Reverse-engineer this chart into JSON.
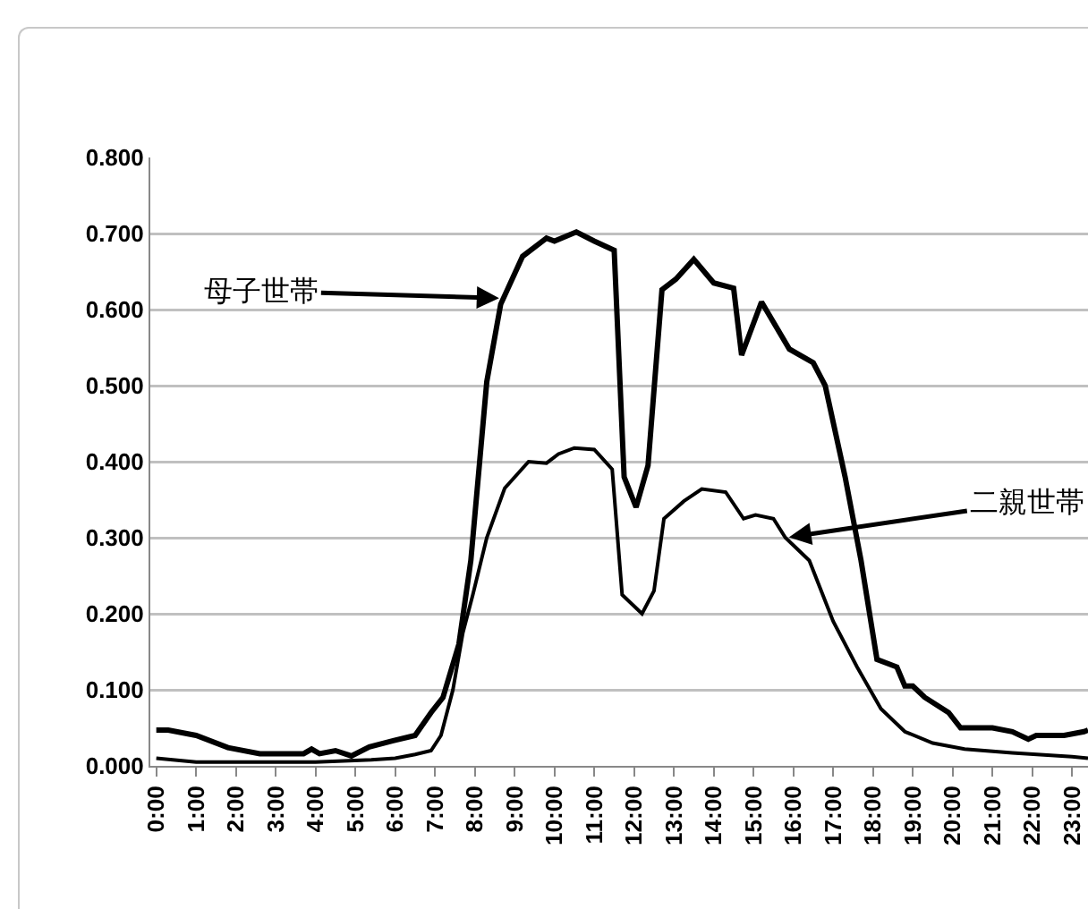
{
  "chart_data": {
    "type": "line",
    "x": [
      0,
      0.3,
      1.0,
      1.8,
      2.6,
      3.7,
      3.9,
      4.1,
      4.5,
      4.9,
      5.35,
      5.95,
      6.5,
      6.9,
      7.2,
      7.6,
      7.9,
      8.3,
      8.65,
      9.2,
      9.55,
      9.8,
      10.0,
      10.55,
      11.0,
      11.5,
      11.75,
      12.05,
      12.35,
      12.7,
      13.05,
      13.5,
      14.0,
      14.5,
      14.7,
      15.2,
      15.9,
      16.5,
      16.8,
      17.3,
      17.7,
      18.1,
      18.6,
      18.8,
      19.0,
      19.3,
      19.9,
      20.2,
      21.0,
      21.5,
      21.9,
      22.1,
      22.8,
      23.3,
      23.4
    ],
    "series": [
      {
        "color": "#000000",
        "values": [
          0.047,
          0.047,
          0.04,
          0.024,
          0.016,
          0.016,
          0.022,
          0.016,
          0.02,
          0.013,
          0.025,
          0.033,
          0.04,
          0.07,
          0.09,
          0.16,
          0.27,
          0.505,
          0.607,
          0.67,
          0.684,
          0.694,
          0.69,
          0.702,
          0.69,
          0.678,
          0.38,
          0.34,
          0.395,
          0.626,
          0.64,
          0.666,
          0.635,
          0.628,
          0.54,
          0.61,
          0.548,
          0.53,
          0.5,
          0.38,
          0.27,
          0.14,
          0.13,
          0.105,
          0.105,
          0.09,
          0.07,
          0.05,
          0.05,
          0.045,
          0.035,
          0.04,
          0.04,
          0.045,
          0.047
        ]
      },
      {
        "color": "#000000",
        "x": [
          0,
          1.0,
          2.0,
          3.0,
          4.0,
          5.4,
          6.0,
          6.5,
          6.9,
          7.15,
          7.45,
          7.7,
          7.95,
          8.3,
          8.75,
          9.35,
          9.8,
          10.1,
          10.5,
          11.0,
          11.45,
          11.7,
          12.2,
          12.5,
          12.75,
          13.25,
          13.7,
          14.3,
          14.75,
          15.05,
          15.5,
          15.8,
          16.4,
          17.0,
          17.6,
          18.2,
          18.8,
          19.5,
          20.3,
          21.5,
          23.0,
          23.4
        ],
        "values": [
          0.01,
          0.005,
          0.005,
          0.005,
          0.005,
          0.008,
          0.01,
          0.015,
          0.02,
          0.04,
          0.1,
          0.175,
          0.225,
          0.3,
          0.365,
          0.4,
          0.398,
          0.41,
          0.418,
          0.416,
          0.39,
          0.225,
          0.2,
          0.23,
          0.325,
          0.348,
          0.364,
          0.36,
          0.325,
          0.33,
          0.325,
          0.3,
          0.27,
          0.19,
          0.13,
          0.075,
          0.045,
          0.03,
          0.022,
          0.017,
          0.012,
          0.01
        ]
      }
    ],
    "xlim": [
      -0.15,
      23.4
    ],
    "xticks": [
      {
        "value": 0,
        "label": "0:00"
      },
      {
        "value": 1,
        "label": "1:00"
      },
      {
        "value": 2,
        "label": "2:00"
      },
      {
        "value": 3,
        "label": "3:00"
      },
      {
        "value": 4,
        "label": "4:00"
      },
      {
        "value": 5,
        "label": "5:00"
      },
      {
        "value": 6,
        "label": "6:00"
      },
      {
        "value": 7,
        "label": "7:00"
      },
      {
        "value": 8,
        "label": "8:00"
      },
      {
        "value": 9,
        "label": "9:00"
      },
      {
        "value": 10,
        "label": "10:00"
      },
      {
        "value": 11,
        "label": "11:00"
      },
      {
        "value": 12,
        "label": "12:00"
      },
      {
        "value": 13,
        "label": "13:00"
      },
      {
        "value": 14,
        "label": "14:00"
      },
      {
        "value": 15,
        "label": "15:00"
      },
      {
        "value": 16,
        "label": "16:00"
      },
      {
        "value": 17,
        "label": "17:00"
      },
      {
        "value": 18,
        "label": "18:00"
      },
      {
        "value": 19,
        "label": "19:00"
      },
      {
        "value": 20,
        "label": "20:00"
      },
      {
        "value": 21,
        "label": "21:00"
      },
      {
        "value": 22,
        "label": "22:00"
      },
      {
        "value": 23,
        "label": "23:00"
      }
    ],
    "ylim": [
      0,
      0.8
    ],
    "yticks": [
      {
        "value": 0,
        "label": "0.000"
      },
      {
        "value": 0.1,
        "label": "0.100"
      },
      {
        "value": 0.2,
        "label": "0.200"
      },
      {
        "value": 0.3,
        "label": "0.300"
      },
      {
        "value": 0.4,
        "label": "0.400"
      },
      {
        "value": 0.5,
        "label": "0.500"
      },
      {
        "value": 0.6,
        "label": "0.600"
      },
      {
        "value": 0.7,
        "label": "0.700"
      },
      {
        "value": 0.8,
        "label": "0.800"
      }
    ],
    "grid": "y",
    "marker": "none",
    "annotations": [
      {
        "text": "母子世帯",
        "x": 8.7,
        "y": 0.615
      },
      {
        "text": "二親世帯",
        "x": 15.8,
        "y": 0.3
      }
    ]
  }
}
